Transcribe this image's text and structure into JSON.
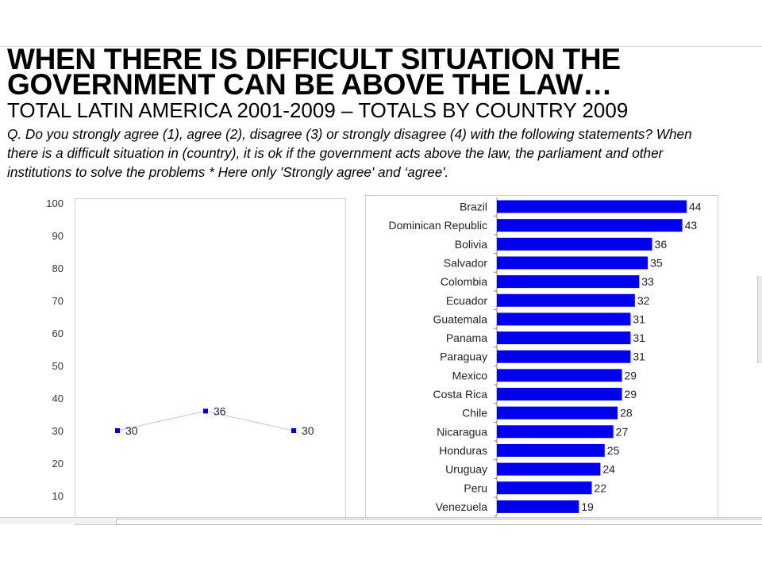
{
  "slide": {
    "title_line1": "WHEN THERE IS DIFFICULT SITUATION THE",
    "title_line2": "GOVERNMENT  CAN BE ABOVE THE LAW…",
    "subtitle": "TOTAL LATIN AMERICA 2001-2009 – TOTALS BY COUNTRY 2009",
    "question_lines": [
      "Q. Do you strongly agree (1), agree (2), disagree (3) or strongly disagree (4) with the following statements? When",
      "there is a difficult situation in (country), it is  ok if  the government  acts above the law, the parliament and other",
      "institutions to solve the problems  * Here only 'Strongly agree' and ‘agree'."
    ]
  },
  "chart_data": [
    {
      "type": "line",
      "title": "",
      "xlabel": "",
      "ylabel": "",
      "ylim": [
        0,
        100
      ],
      "yticks": [
        10,
        20,
        30,
        40,
        50,
        60,
        70,
        80,
        90,
        100
      ],
      "x_labels": [],
      "series": [
        {
          "values": [
            30,
            36,
            30
          ],
          "data_labels": [
            "30",
            "36",
            "30"
          ],
          "color": "#0000cc",
          "line_color": "#c8d0f0"
        }
      ],
      "grid": false
    },
    {
      "type": "bar",
      "orientation": "horizontal",
      "categories": [
        "Brazil",
        "Dominican Republic",
        "Bolivia",
        "Salvador",
        "Colombia",
        "Ecuador",
        "Guatemala",
        "Panama",
        "Paraguay",
        "Mexico",
        "Costa Rica",
        "Chile",
        "Nicaragua",
        "Honduras",
        "Uruguay",
        "Peru",
        "Venezuela"
      ],
      "values": [
        44,
        43,
        36,
        35,
        33,
        32,
        31,
        31,
        31,
        29,
        29,
        28,
        27,
        25,
        24,
        22,
        19
      ],
      "color": "#0000ee",
      "title": "",
      "grid": false
    }
  ]
}
